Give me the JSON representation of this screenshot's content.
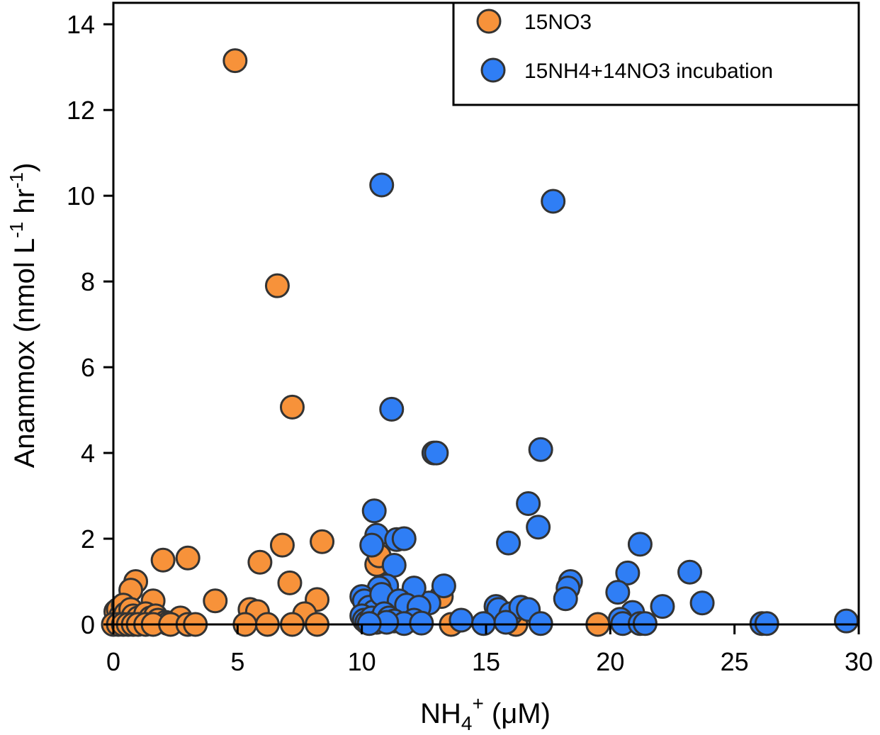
{
  "chart_data": {
    "type": "scatter",
    "title": "",
    "xlabel": {
      "base": "NH",
      "sub": "4",
      "sup": "+",
      "unit": " (μM)"
    },
    "ylabel": {
      "prefix": "Anammox (nmol L",
      "sup1": "-1",
      "mid": " hr",
      "sup2": "-1",
      "suffix": ")"
    },
    "xlim": [
      0,
      30
    ],
    "ylim": [
      0,
      14.5
    ],
    "xticks": [
      0,
      5,
      10,
      15,
      20,
      25,
      30
    ],
    "yticks": [
      0,
      2,
      4,
      6,
      8,
      10,
      12,
      14
    ],
    "grid": false,
    "legend_position": "top-right",
    "series": [
      {
        "name": "15NO3",
        "color": "#F7923A",
        "points": [
          [
            4.9,
            13.15
          ],
          [
            6.6,
            7.9
          ],
          [
            7.2,
            5.07
          ],
          [
            2.0,
            1.5
          ],
          [
            3.0,
            1.55
          ],
          [
            5.9,
            1.45
          ],
          [
            6.8,
            1.85
          ],
          [
            8.4,
            1.93
          ],
          [
            10.6,
            1.4
          ],
          [
            10.7,
            1.6
          ],
          [
            0.9,
            1.0
          ],
          [
            0.7,
            0.8
          ],
          [
            1.6,
            0.55
          ],
          [
            4.1,
            0.55
          ],
          [
            7.1,
            0.97
          ],
          [
            8.2,
            0.58
          ],
          [
            13.2,
            0.65
          ],
          [
            5.5,
            0.35
          ],
          [
            5.8,
            0.3
          ],
          [
            7.7,
            0.25
          ],
          [
            2.7,
            0.15
          ],
          [
            0.1,
            0.3
          ],
          [
            0.2,
            0.35
          ],
          [
            0.3,
            0.2
          ],
          [
            0.4,
            0.45
          ],
          [
            0.5,
            0.25
          ],
          [
            0.6,
            0.1
          ],
          [
            0.7,
            0.35
          ],
          [
            0.8,
            0.2
          ],
          [
            1.0,
            0.15
          ],
          [
            1.1,
            0.05
          ],
          [
            1.2,
            0.1
          ],
          [
            1.3,
            0.25
          ],
          [
            1.4,
            0.05
          ],
          [
            1.5,
            0.15
          ],
          [
            1.7,
            0.2
          ],
          [
            1.8,
            0.1
          ],
          [
            2.1,
            0.05
          ],
          [
            2.2,
            0.02
          ],
          [
            0.0,
            0.0
          ],
          [
            0.2,
            0.0
          ],
          [
            0.4,
            0.0
          ],
          [
            0.6,
            0.0
          ],
          [
            0.8,
            0.0
          ],
          [
            1.0,
            0.0
          ],
          [
            1.3,
            0.0
          ],
          [
            1.6,
            0.0
          ],
          [
            2.3,
            0.0
          ],
          [
            3.0,
            0.0
          ],
          [
            3.3,
            0.0
          ],
          [
            5.3,
            0.0
          ],
          [
            6.2,
            0.0
          ],
          [
            7.2,
            0.0
          ],
          [
            8.2,
            0.0
          ],
          [
            13.6,
            0.0
          ],
          [
            19.5,
            0.0
          ],
          [
            16.2,
            0.0
          ]
        ]
      },
      {
        "name": "15NH4+14NO3 incubation",
        "color": "#2F7EF5",
        "points": [
          [
            10.8,
            10.25
          ],
          [
            17.7,
            9.87
          ],
          [
            11.2,
            5.02
          ],
          [
            12.9,
            4.0
          ],
          [
            13.0,
            4.0
          ],
          [
            17.2,
            4.08
          ],
          [
            16.7,
            2.82
          ],
          [
            17.1,
            2.27
          ],
          [
            10.5,
            2.65
          ],
          [
            10.6,
            2.08
          ],
          [
            10.4,
            1.85
          ],
          [
            11.4,
            1.98
          ],
          [
            11.7,
            2.0
          ],
          [
            15.9,
            1.9
          ],
          [
            21.2,
            1.87
          ],
          [
            11.3,
            1.38
          ],
          [
            20.7,
            1.2
          ],
          [
            23.2,
            1.22
          ],
          [
            18.4,
            1.0
          ],
          [
            18.3,
            0.85
          ],
          [
            18.2,
            0.6
          ],
          [
            20.3,
            0.75
          ],
          [
            23.7,
            0.5
          ],
          [
            22.1,
            0.42
          ],
          [
            13.3,
            0.9
          ],
          [
            12.7,
            0.5
          ],
          [
            11.6,
            0.35
          ],
          [
            12.1,
            0.85
          ],
          [
            11.0,
            0.9
          ],
          [
            10.7,
            0.85
          ],
          [
            10.0,
            0.65
          ],
          [
            10.1,
            0.55
          ],
          [
            10.3,
            0.4
          ],
          [
            10.5,
            0.3
          ],
          [
            10.8,
            0.7
          ],
          [
            11.5,
            0.55
          ],
          [
            11.8,
            0.45
          ],
          [
            12.3,
            0.4
          ],
          [
            15.4,
            0.42
          ],
          [
            15.5,
            0.35
          ],
          [
            16.0,
            0.25
          ],
          [
            16.4,
            0.4
          ],
          [
            16.7,
            0.35
          ],
          [
            20.9,
            0.28
          ],
          [
            20.4,
            0.12
          ],
          [
            10.0,
            0.2
          ],
          [
            10.1,
            0.1
          ],
          [
            10.2,
            0.05
          ],
          [
            10.4,
            0.15
          ],
          [
            10.6,
            0.05
          ],
          [
            10.9,
            0.25
          ],
          [
            11.1,
            0.15
          ],
          [
            11.3,
            0.08
          ],
          [
            12.1,
            0.1
          ],
          [
            14.0,
            0.1
          ],
          [
            14.9,
            0.02
          ],
          [
            15.8,
            0.05
          ],
          [
            17.2,
            0.02
          ],
          [
            20.5,
            0.02
          ],
          [
            21.2,
            0.02
          ],
          [
            21.4,
            0.02
          ],
          [
            26.1,
            0.02
          ],
          [
            26.3,
            0.02
          ],
          [
            29.5,
            0.08
          ],
          [
            11.7,
            0.02
          ],
          [
            11.0,
            0.05
          ],
          [
            10.3,
            0.02
          ],
          [
            12.4,
            0.03
          ]
        ]
      }
    ]
  }
}
